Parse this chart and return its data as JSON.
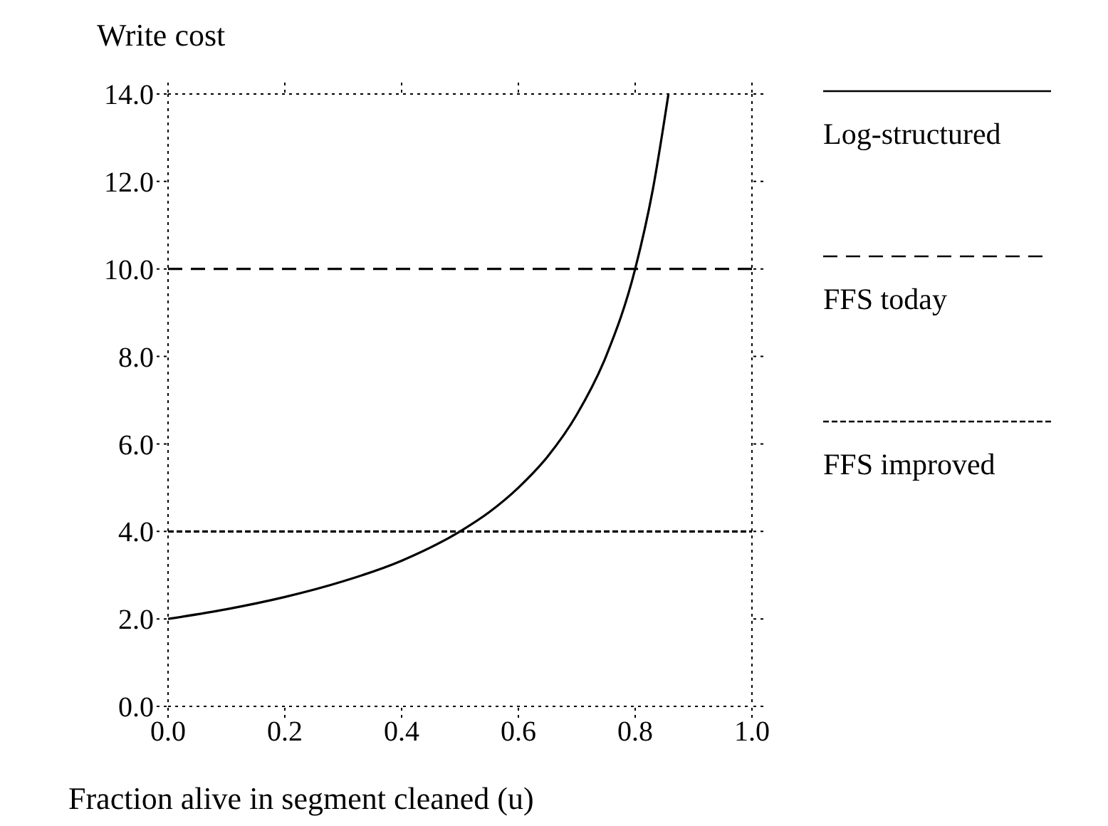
{
  "chart_data": {
    "type": "line",
    "xlabel": "Fraction alive in segment cleaned (u)",
    "ylabel": "Write cost",
    "xlim": [
      0,
      1
    ],
    "xticks": [
      {
        "value": 0,
        "label": "0.0"
      },
      {
        "value": 0.2,
        "label": "0.2"
      },
      {
        "value": 0.4,
        "label": "0.4"
      },
      {
        "value": 0.6,
        "label": "0.6"
      },
      {
        "value": 0.8,
        "label": "0.8"
      },
      {
        "value": 1,
        "label": "1.0"
      }
    ],
    "ylim": [
      0,
      14
    ],
    "yticks": [
      {
        "value": 0,
        "label": "0.0"
      },
      {
        "value": 2,
        "label": "2.0"
      },
      {
        "value": 4,
        "label": "4.0"
      },
      {
        "value": 6,
        "label": "6.0"
      },
      {
        "value": 8,
        "label": "8.0"
      },
      {
        "value": 10,
        "label": "10.0"
      },
      {
        "value": 12,
        "label": "12.0"
      },
      {
        "value": 14,
        "label": "14.0"
      }
    ],
    "legend": "right",
    "marker": "none",
    "series": [
      {
        "name": "Log-structured",
        "color": "#000000",
        "line_style": "solid",
        "x": [
          0,
          0.1,
          0.2,
          0.3,
          0.4,
          0.5,
          0.55,
          0.6,
          0.65,
          0.7,
          0.75,
          0.8,
          0.83,
          0.857
        ],
        "values": [
          2,
          2.22,
          2.5,
          2.86,
          3.33,
          4,
          4.44,
          5,
          5.71,
          6.67,
          8,
          10,
          11.8,
          14
        ]
      },
      {
        "name": "FFS today",
        "color": "#000000",
        "line_style": "dashed",
        "x": [
          0,
          1
        ],
        "values": [
          10,
          10
        ]
      },
      {
        "name": "FFS improved",
        "color": "#000000",
        "line_style": "dotted",
        "x": [
          0,
          1
        ],
        "values": [
          4,
          4
        ]
      }
    ]
  }
}
